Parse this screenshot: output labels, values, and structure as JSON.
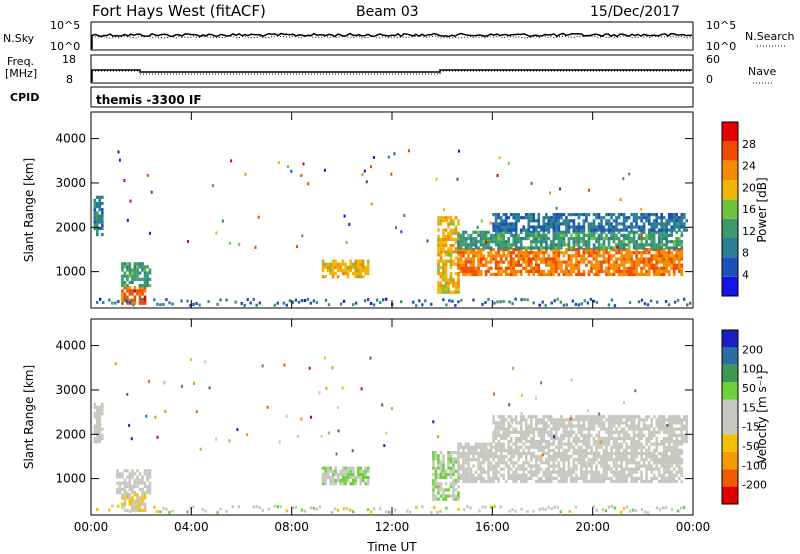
{
  "header": {
    "station": "Fort Hays West (fitACF)",
    "beam": "Beam 03",
    "date": "15/Dec/2017"
  },
  "mini_panels": {
    "nsky_label": "N.Sky",
    "nsky_ticks": [
      "10^5",
      "10^0"
    ],
    "nsearch_label": "N.Search",
    "nsearch_ticks": [
      "10^5",
      "10^0"
    ],
    "freq_label_1": "Freq.",
    "freq_label_2": "[MHz]",
    "freq_ticks": [
      "18",
      "8"
    ],
    "nave_label": "Nave",
    "nave_ticks": [
      "60",
      "0"
    ],
    "cpid_label": "CPID",
    "cpid_text": "themis -3300 IF"
  },
  "colors": {
    "power": [
      "#1414e6",
      "#1f4fb8",
      "#2a7f93",
      "#3b9a6a",
      "#6ec23e",
      "#f2b400",
      "#f48a00",
      "#f04a00",
      "#e60000"
    ],
    "velocity": [
      "#e00000",
      "#f15a00",
      "#f59a00",
      "#f2c200",
      "#c8c8c0",
      "#c8c8c0",
      "#6dd23a",
      "#3b9a50",
      "#2a6fa0",
      "#1e1ec8"
    ]
  },
  "chart_data": [
    {
      "type": "heatmap",
      "name": "power",
      "ylabel": "Slant Range [km]",
      "xlabel": "",
      "x_ticks": [
        "00:00",
        "04:00",
        "08:00",
        "12:00",
        "16:00",
        "20:00",
        "00:00"
      ],
      "y_ticks": [
        "1000",
        "2000",
        "3000",
        "4000"
      ],
      "xlim": [
        0,
        24
      ],
      "ylim": [
        180,
        4600
      ],
      "colorbar_label": "Power [dB]",
      "colorbar_ticks": [
        "4",
        "8",
        "12",
        "16",
        "20",
        "24",
        "28"
      ],
      "colorbar_range": [
        0,
        32
      ],
      "regions": [
        {
          "t0": 0.1,
          "t1": 0.5,
          "r0": 1800,
          "r1": 2700,
          "value": 9
        },
        {
          "t0": 1.2,
          "t1": 2.2,
          "r0": 250,
          "r1": 650,
          "value": 26
        },
        {
          "t0": 1.2,
          "t1": 2.4,
          "r0": 650,
          "r1": 1200,
          "value": 12
        },
        {
          "t0": 9.2,
          "t1": 11.0,
          "r0": 850,
          "r1": 1250,
          "value": 20
        },
        {
          "t0": 13.8,
          "t1": 14.6,
          "r0": 500,
          "r1": 2200,
          "value": 20
        },
        {
          "t0": 14.6,
          "t1": 23.6,
          "r0": 900,
          "r1": 1500,
          "value": 24
        },
        {
          "t0": 14.6,
          "t1": 23.6,
          "r0": 1500,
          "r1": 1900,
          "value": 12
        },
        {
          "t0": 16.0,
          "t1": 23.8,
          "r0": 1900,
          "r1": 2300,
          "value": 8
        }
      ]
    },
    {
      "type": "heatmap",
      "name": "velocity",
      "ylabel": "Slant Range [km]",
      "xlabel": "Time UT",
      "x_ticks": [
        "00:00",
        "04:00",
        "08:00",
        "12:00",
        "16:00",
        "20:00",
        "00:00"
      ],
      "y_ticks": [
        "1000",
        "2000",
        "3000",
        "4000"
      ],
      "xlim": [
        0,
        24
      ],
      "ylim": [
        180,
        4600
      ],
      "colorbar_label": "Velocity [m s⁻¹]",
      "colorbar_ticks": [
        "-200",
        "-100",
        "-50",
        "-15",
        "15",
        "50",
        "100",
        "200"
      ],
      "colorbar_range": [
        -250,
        250
      ],
      "regions": [
        {
          "t0": 0.1,
          "t1": 0.5,
          "r0": 1800,
          "r1": 2700,
          "value": 0
        },
        {
          "t0": 1.2,
          "t1": 2.2,
          "r0": 250,
          "r1": 650,
          "value": -40
        },
        {
          "t0": 1.0,
          "t1": 2.4,
          "r0": 650,
          "r1": 1200,
          "value": 0
        },
        {
          "t0": 9.2,
          "t1": 11.0,
          "r0": 850,
          "r1": 1250,
          "value": 40
        },
        {
          "t0": 13.6,
          "t1": 14.6,
          "r0": 500,
          "r1": 1600,
          "value": 40
        },
        {
          "t0": 14.6,
          "t1": 23.6,
          "r0": 900,
          "r1": 1800,
          "value": 0
        },
        {
          "t0": 16.0,
          "t1": 23.8,
          "r0": 1800,
          "r1": 2400,
          "value": 0
        }
      ]
    }
  ]
}
